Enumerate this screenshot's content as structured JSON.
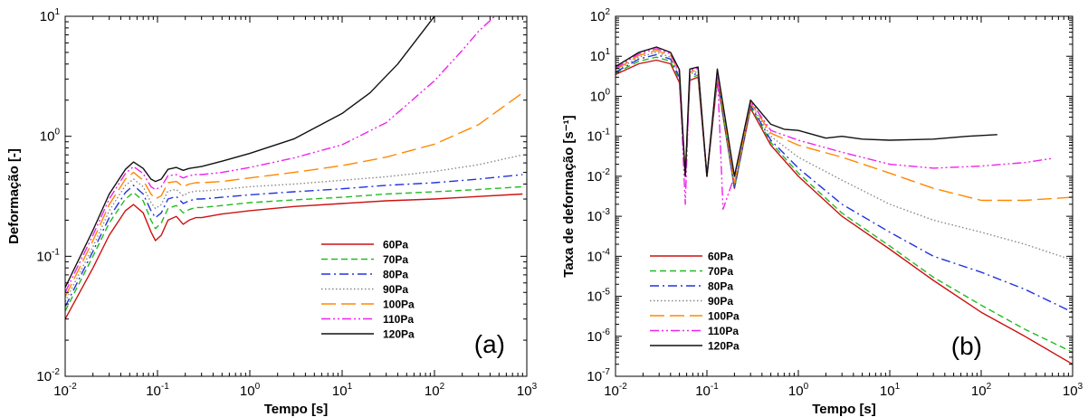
{
  "chart_data": [
    {
      "type": "line",
      "panel_label": "(a)",
      "xlabel": "Tempo [s]",
      "ylabel": "Deformação [-]",
      "xscale": "log",
      "yscale": "log",
      "xlim": [
        0.01,
        1000
      ],
      "ylim": [
        0.01,
        10
      ],
      "x_ticks": [
        {
          "base": "10",
          "exp": "-2"
        },
        {
          "base": "10",
          "exp": "-1"
        },
        {
          "base": "10",
          "exp": "0"
        },
        {
          "base": "10",
          "exp": "1"
        },
        {
          "base": "10",
          "exp": "2"
        },
        {
          "base": "10",
          "exp": "3"
        }
      ],
      "y_ticks": [
        {
          "base": "10",
          "exp": "-2"
        },
        {
          "base": "10",
          "exp": "-1"
        },
        {
          "base": "10",
          "exp": "0"
        },
        {
          "base": "10",
          "exp": "1"
        }
      ],
      "grid": false,
      "legend_position": "bottom-center",
      "series": [
        {
          "name": "60Pa",
          "color": "#cc1111",
          "dash": "solid",
          "x": [
            0.01,
            0.02,
            0.03,
            0.045,
            0.055,
            0.07,
            0.085,
            0.095,
            0.11,
            0.13,
            0.16,
            0.19,
            0.22,
            0.26,
            0.3,
            0.5,
            1,
            3,
            10,
            30,
            100,
            300,
            900
          ],
          "y": [
            0.03,
            0.08,
            0.15,
            0.24,
            0.27,
            0.23,
            0.16,
            0.135,
            0.15,
            0.2,
            0.215,
            0.185,
            0.2,
            0.21,
            0.21,
            0.225,
            0.24,
            0.26,
            0.275,
            0.29,
            0.3,
            0.315,
            0.33
          ]
        },
        {
          "name": "70Pa",
          "color": "#22bb22",
          "dash": "dashed",
          "x": [
            0.01,
            0.02,
            0.03,
            0.045,
            0.055,
            0.07,
            0.085,
            0.095,
            0.11,
            0.13,
            0.16,
            0.19,
            0.22,
            0.26,
            0.3,
            0.5,
            1,
            3,
            10,
            30,
            100,
            300,
            900
          ],
          "y": [
            0.035,
            0.1,
            0.19,
            0.3,
            0.34,
            0.29,
            0.2,
            0.17,
            0.19,
            0.25,
            0.265,
            0.23,
            0.245,
            0.255,
            0.255,
            0.265,
            0.28,
            0.295,
            0.31,
            0.33,
            0.345,
            0.36,
            0.38
          ]
        },
        {
          "name": "80Pa",
          "color": "#2233dd",
          "dash": "dashdot",
          "x": [
            0.01,
            0.02,
            0.03,
            0.045,
            0.055,
            0.07,
            0.085,
            0.095,
            0.11,
            0.13,
            0.16,
            0.19,
            0.22,
            0.26,
            0.3,
            0.5,
            1,
            3,
            10,
            30,
            100,
            300,
            900
          ],
          "y": [
            0.038,
            0.11,
            0.21,
            0.34,
            0.39,
            0.33,
            0.24,
            0.21,
            0.23,
            0.3,
            0.315,
            0.275,
            0.29,
            0.3,
            0.3,
            0.31,
            0.325,
            0.345,
            0.365,
            0.39,
            0.41,
            0.44,
            0.48
          ]
        },
        {
          "name": "90Pa",
          "color": "#888888",
          "dash": "dotted",
          "x": [
            0.01,
            0.02,
            0.03,
            0.045,
            0.055,
            0.07,
            0.085,
            0.095,
            0.11,
            0.13,
            0.16,
            0.19,
            0.22,
            0.26,
            0.3,
            0.5,
            1,
            3,
            10,
            30,
            100,
            300,
            900
          ],
          "y": [
            0.042,
            0.12,
            0.24,
            0.39,
            0.44,
            0.38,
            0.28,
            0.25,
            0.27,
            0.35,
            0.36,
            0.32,
            0.34,
            0.35,
            0.35,
            0.36,
            0.38,
            0.4,
            0.43,
            0.46,
            0.51,
            0.58,
            0.7
          ]
        },
        {
          "name": "100Pa",
          "color": "#ff8800",
          "dash": "longdash",
          "x": [
            0.01,
            0.02,
            0.03,
            0.045,
            0.055,
            0.07,
            0.085,
            0.095,
            0.11,
            0.13,
            0.16,
            0.19,
            0.22,
            0.26,
            0.3,
            0.5,
            1,
            3,
            10,
            30,
            100,
            300,
            900
          ],
          "y": [
            0.046,
            0.135,
            0.27,
            0.44,
            0.5,
            0.43,
            0.33,
            0.3,
            0.32,
            0.41,
            0.42,
            0.38,
            0.4,
            0.41,
            0.41,
            0.42,
            0.45,
            0.5,
            0.57,
            0.67,
            0.86,
            1.25,
            2.3
          ]
        },
        {
          "name": "110Pa",
          "color": "#ee22ee",
          "dash": "dashdotdot",
          "x": [
            0.01,
            0.02,
            0.03,
            0.045,
            0.055,
            0.07,
            0.085,
            0.095,
            0.11,
            0.13,
            0.16,
            0.19,
            0.22,
            0.26,
            0.3,
            0.5,
            1,
            3,
            10,
            30,
            100,
            200,
            300,
            450
          ],
          "y": [
            0.05,
            0.15,
            0.3,
            0.49,
            0.56,
            0.49,
            0.38,
            0.36,
            0.38,
            0.47,
            0.48,
            0.45,
            0.47,
            0.48,
            0.48,
            0.5,
            0.55,
            0.66,
            0.85,
            1.3,
            2.9,
            5.2,
            7.5,
            10
          ]
        },
        {
          "name": "120Pa",
          "color": "#111111",
          "dash": "solid",
          "x": [
            0.01,
            0.02,
            0.03,
            0.045,
            0.055,
            0.07,
            0.085,
            0.095,
            0.11,
            0.13,
            0.16,
            0.19,
            0.22,
            0.26,
            0.3,
            0.5,
            1,
            3,
            10,
            20,
            40,
            70,
            100
          ],
          "y": [
            0.055,
            0.165,
            0.33,
            0.53,
            0.61,
            0.54,
            0.44,
            0.42,
            0.44,
            0.53,
            0.55,
            0.52,
            0.54,
            0.55,
            0.56,
            0.62,
            0.72,
            0.95,
            1.55,
            2.3,
            4.0,
            7.0,
            10
          ]
        }
      ]
    },
    {
      "type": "line",
      "panel_label": "(b)",
      "xlabel": "Tempo [s]",
      "ylabel": "Taxa de deformação [s⁻¹]",
      "xscale": "log",
      "yscale": "log",
      "xlim": [
        0.01,
        1000
      ],
      "ylim": [
        1e-07,
        100
      ],
      "x_ticks": [
        {
          "base": "10",
          "exp": "-2"
        },
        {
          "base": "10",
          "exp": "-1"
        },
        {
          "base": "10",
          "exp": "0"
        },
        {
          "base": "10",
          "exp": "1"
        },
        {
          "base": "10",
          "exp": "2"
        },
        {
          "base": "10",
          "exp": "3"
        }
      ],
      "y_ticks": [
        {
          "base": "10",
          "exp": "-7"
        },
        {
          "base": "10",
          "exp": "-6"
        },
        {
          "base": "10",
          "exp": "-5"
        },
        {
          "base": "10",
          "exp": "-4"
        },
        {
          "base": "10",
          "exp": "-3"
        },
        {
          "base": "10",
          "exp": "-2"
        },
        {
          "base": "10",
          "exp": "-1"
        },
        {
          "base": "10",
          "exp": "0"
        },
        {
          "base": "10",
          "exp": "1"
        },
        {
          "base": "10",
          "exp": "2"
        }
      ],
      "grid": false,
      "legend_position": "bottom-left",
      "series": [
        {
          "name": "60Pa",
          "color": "#cc1111",
          "dash": "solid",
          "x": [
            0.01,
            0.018,
            0.028,
            0.04,
            0.05,
            0.058,
            0.065,
            0.08,
            0.1,
            0.13,
            0.2,
            0.3,
            0.5,
            1,
            3,
            10,
            30,
            100,
            300,
            1000
          ],
          "y": [
            3.5,
            6.5,
            8.0,
            6.5,
            2.2,
            0.01,
            2.5,
            3.0,
            0.01,
            2.5,
            0.005,
            0.5,
            0.06,
            0.01,
            0.001,
            0.00015,
            2.5e-05,
            4e-06,
            1e-06,
            2e-07
          ]
        },
        {
          "name": "70Pa",
          "color": "#22bb22",
          "dash": "dashed",
          "x": [
            0.01,
            0.018,
            0.028,
            0.04,
            0.05,
            0.058,
            0.065,
            0.08,
            0.1,
            0.13,
            0.2,
            0.3,
            0.5,
            1,
            3,
            10,
            30,
            100,
            300,
            1000
          ],
          "y": [
            3.8,
            7.5,
            9.5,
            7.5,
            2.6,
            0.01,
            2.8,
            3.4,
            0.01,
            2.8,
            0.005,
            0.55,
            0.07,
            0.012,
            0.0012,
            0.00018,
            3e-05,
            6e-06,
            1.5e-06,
            4e-07
          ]
        },
        {
          "name": "80Pa",
          "color": "#2233dd",
          "dash": "dashdot",
          "x": [
            0.01,
            0.018,
            0.028,
            0.04,
            0.05,
            0.058,
            0.065,
            0.08,
            0.1,
            0.13,
            0.2,
            0.3,
            0.5,
            1,
            3,
            10,
            30,
            100,
            300,
            1000
          ],
          "y": [
            4.0,
            8.5,
            11,
            8.5,
            3.0,
            0.01,
            3.2,
            3.8,
            0.01,
            3.2,
            0.005,
            0.6,
            0.08,
            0.016,
            0.002,
            0.0004,
            0.0001,
            4e-05,
            1.5e-05,
            4e-06
          ]
        },
        {
          "name": "90Pa",
          "color": "#888888",
          "dash": "dotted",
          "x": [
            0.01,
            0.018,
            0.028,
            0.04,
            0.05,
            0.058,
            0.065,
            0.08,
            0.1,
            0.13,
            0.2,
            0.3,
            0.5,
            1,
            3,
            10,
            30,
            100,
            300,
            1000
          ],
          "y": [
            4.3,
            9.5,
            12.5,
            9.5,
            3.4,
            0.01,
            3.6,
            4.2,
            0.01,
            3.6,
            0.006,
            0.65,
            0.1,
            0.03,
            0.008,
            0.002,
            0.0008,
            0.0004,
            0.0002,
            8e-05
          ]
        },
        {
          "name": "100Pa",
          "color": "#ff8800",
          "dash": "longdash",
          "x": [
            0.01,
            0.018,
            0.028,
            0.04,
            0.05,
            0.058,
            0.065,
            0.08,
            0.1,
            0.13,
            0.2,
            0.3,
            0.5,
            1,
            3,
            10,
            30,
            100,
            300,
            1000
          ],
          "y": [
            4.6,
            10.5,
            14,
            10.5,
            3.8,
            0.01,
            4.0,
            4.6,
            0.01,
            4.0,
            0.007,
            0.7,
            0.12,
            0.06,
            0.03,
            0.012,
            0.005,
            0.0025,
            0.0025,
            0.003
          ]
        },
        {
          "name": "110Pa",
          "color": "#ee22ee",
          "dash": "dashdotdot",
          "x": [
            0.01,
            0.018,
            0.028,
            0.04,
            0.05,
            0.058,
            0.065,
            0.08,
            0.1,
            0.13,
            0.15,
            0.2,
            0.3,
            0.5,
            1,
            3,
            10,
            30,
            100,
            300,
            600
          ],
          "y": [
            5.0,
            11.5,
            15.5,
            11.5,
            4.2,
            0.002,
            4.4,
            5.0,
            0.01,
            4.4,
            0.0015,
            0.01,
            0.75,
            0.14,
            0.08,
            0.04,
            0.02,
            0.016,
            0.018,
            0.022,
            0.028
          ]
        },
        {
          "name": "120Pa",
          "color": "#111111",
          "dash": "solid",
          "x": [
            0.01,
            0.018,
            0.028,
            0.04,
            0.05,
            0.058,
            0.065,
            0.08,
            0.1,
            0.13,
            0.2,
            0.3,
            0.5,
            0.7,
            1,
            2,
            3,
            5,
            10,
            30,
            70,
            150
          ],
          "y": [
            5.5,
            12.5,
            17,
            12.5,
            4.6,
            0.01,
            4.8,
            5.4,
            0.01,
            4.8,
            0.01,
            0.8,
            0.2,
            0.15,
            0.14,
            0.09,
            0.1,
            0.085,
            0.08,
            0.085,
            0.1,
            0.11
          ]
        }
      ]
    }
  ]
}
